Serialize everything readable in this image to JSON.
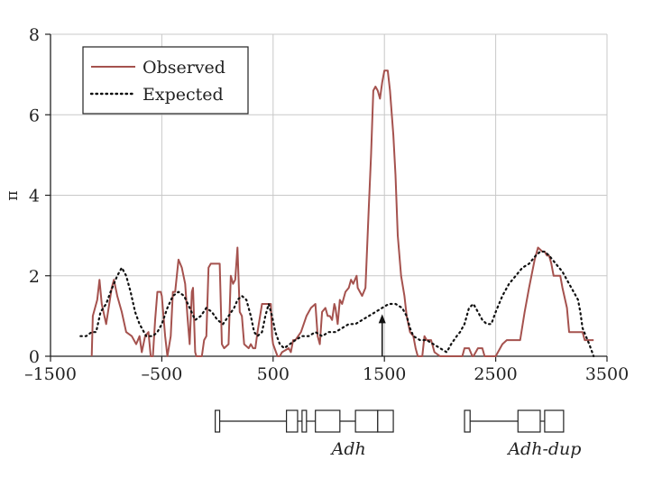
{
  "chart_data": {
    "type": "line",
    "title": "",
    "xlabel": "",
    "ylabel": "π",
    "xlim": [
      -1500,
      3500
    ],
    "ylim": [
      0,
      8
    ],
    "x_ticks": [
      -1500,
      -500,
      500,
      1500,
      2500,
      3500
    ],
    "x_tick_labels": [
      "–1500",
      "–500",
      "500",
      "1500",
      "2500",
      "3500"
    ],
    "y_ticks": [
      0,
      2,
      4,
      6,
      8
    ],
    "y_tick_labels": [
      "0",
      "2",
      "4",
      "6",
      "8"
    ],
    "grid": true,
    "legend_position": "top-left",
    "series": [
      {
        "name": "Observed",
        "style": "solid",
        "color": "#a5524e",
        "points": [
          [
            -1130,
            0
          ],
          [
            -1120,
            1.0
          ],
          [
            -1080,
            1.4
          ],
          [
            -1060,
            1.9
          ],
          [
            -1040,
            1.3
          ],
          [
            -1000,
            0.8
          ],
          [
            -950,
            1.7
          ],
          [
            -930,
            1.9
          ],
          [
            -900,
            1.5
          ],
          [
            -860,
            1.1
          ],
          [
            -820,
            0.6
          ],
          [
            -770,
            0.5
          ],
          [
            -730,
            0.3
          ],
          [
            -700,
            0.5
          ],
          [
            -680,
            0.1
          ],
          [
            -650,
            0.5
          ],
          [
            -620,
            0.6
          ],
          [
            -600,
            0.0
          ],
          [
            -580,
            0.0
          ],
          [
            -560,
            0.9
          ],
          [
            -540,
            1.6
          ],
          [
            -510,
            1.6
          ],
          [
            -500,
            1.5
          ],
          [
            -470,
            0.5
          ],
          [
            -450,
            0.0
          ],
          [
            -420,
            0.5
          ],
          [
            -400,
            1.6
          ],
          [
            -380,
            1.6
          ],
          [
            -350,
            2.4
          ],
          [
            -320,
            2.2
          ],
          [
            -290,
            1.8
          ],
          [
            -270,
            1.0
          ],
          [
            -250,
            0.3
          ],
          [
            -230,
            1.6
          ],
          [
            -220,
            1.7
          ],
          [
            -200,
            0.1
          ],
          [
            -190,
            0.0
          ],
          [
            -140,
            0.0
          ],
          [
            -120,
            0.4
          ],
          [
            -100,
            0.5
          ],
          [
            -80,
            2.2
          ],
          [
            -60,
            2.3
          ],
          [
            20,
            2.3
          ],
          [
            40,
            0.3
          ],
          [
            60,
            0.2
          ],
          [
            100,
            0.3
          ],
          [
            120,
            2.0
          ],
          [
            140,
            1.8
          ],
          [
            160,
            1.9
          ],
          [
            180,
            2.7
          ],
          [
            200,
            1.1
          ],
          [
            220,
            1.0
          ],
          [
            240,
            0.3
          ],
          [
            280,
            0.2
          ],
          [
            300,
            0.3
          ],
          [
            320,
            0.2
          ],
          [
            340,
            0.2
          ],
          [
            360,
            0.6
          ],
          [
            400,
            1.3
          ],
          [
            450,
            1.3
          ],
          [
            480,
            1.3
          ],
          [
            490,
            0.5
          ],
          [
            500,
            0.3
          ],
          [
            540,
            0.0
          ],
          [
            560,
            0.0
          ],
          [
            580,
            0.1
          ],
          [
            640,
            0.2
          ],
          [
            660,
            0.1
          ],
          [
            680,
            0.4
          ],
          [
            700,
            0.4
          ],
          [
            750,
            0.6
          ],
          [
            800,
            1.0
          ],
          [
            840,
            1.2
          ],
          [
            880,
            1.3
          ],
          [
            900,
            0.5
          ],
          [
            920,
            0.3
          ],
          [
            940,
            1.1
          ],
          [
            970,
            1.2
          ],
          [
            990,
            1.0
          ],
          [
            1010,
            1.0
          ],
          [
            1030,
            0.9
          ],
          [
            1050,
            1.3
          ],
          [
            1060,
            1.2
          ],
          [
            1080,
            0.8
          ],
          [
            1100,
            1.4
          ],
          [
            1120,
            1.3
          ],
          [
            1150,
            1.6
          ],
          [
            1180,
            1.7
          ],
          [
            1200,
            1.9
          ],
          [
            1220,
            1.8
          ],
          [
            1250,
            2.0
          ],
          [
            1260,
            1.7
          ],
          [
            1300,
            1.5
          ],
          [
            1330,
            1.7
          ],
          [
            1360,
            3.7
          ],
          [
            1380,
            5.0
          ],
          [
            1400,
            6.6
          ],
          [
            1420,
            6.7
          ],
          [
            1440,
            6.6
          ],
          [
            1460,
            6.4
          ],
          [
            1480,
            6.8
          ],
          [
            1500,
            7.1
          ],
          [
            1530,
            7.1
          ],
          [
            1550,
            6.6
          ],
          [
            1580,
            5.5
          ],
          [
            1600,
            4.5
          ],
          [
            1620,
            3.0
          ],
          [
            1650,
            2.0
          ],
          [
            1680,
            1.5
          ],
          [
            1700,
            1.0
          ],
          [
            1730,
            0.6
          ],
          [
            1760,
            0.5
          ],
          [
            1780,
            0.2
          ],
          [
            1800,
            0.0
          ],
          [
            1840,
            0.0
          ],
          [
            1860,
            0.5
          ],
          [
            1880,
            0.4
          ],
          [
            1920,
            0.4
          ],
          [
            1950,
            0.1
          ],
          [
            2000,
            0.0
          ],
          [
            2200,
            0.0
          ],
          [
            2220,
            0.2
          ],
          [
            2260,
            0.2
          ],
          [
            2290,
            0.0
          ],
          [
            2300,
            0.0
          ],
          [
            2340,
            0.2
          ],
          [
            2380,
            0.2
          ],
          [
            2400,
            0.0
          ],
          [
            2500,
            0.0
          ],
          [
            2560,
            0.3
          ],
          [
            2600,
            0.4
          ],
          [
            2700,
            0.4
          ],
          [
            2720,
            0.4
          ],
          [
            2760,
            1.1
          ],
          [
            2800,
            1.7
          ],
          [
            2850,
            2.4
          ],
          [
            2880,
            2.7
          ],
          [
            2920,
            2.6
          ],
          [
            2940,
            2.6
          ],
          [
            2960,
            2.5
          ],
          [
            2980,
            2.5
          ],
          [
            3000,
            2.3
          ],
          [
            3020,
            2.0
          ],
          [
            3060,
            2.0
          ],
          [
            3080,
            2.0
          ],
          [
            3100,
            1.7
          ],
          [
            3140,
            1.2
          ],
          [
            3160,
            0.6
          ],
          [
            3200,
            0.6
          ],
          [
            3240,
            0.6
          ],
          [
            3280,
            0.6
          ],
          [
            3300,
            0.4
          ],
          [
            3350,
            0.4
          ],
          [
            3380,
            0.4
          ]
        ]
      },
      {
        "name": "Expected",
        "style": "dotted",
        "color": "#111111",
        "points": [
          [
            -1230,
            0.5
          ],
          [
            -1180,
            0.5
          ],
          [
            -1130,
            0.6
          ],
          [
            -1090,
            0.6
          ],
          [
            -1050,
            1.1
          ],
          [
            -1000,
            1.3
          ],
          [
            -960,
            1.6
          ],
          [
            -900,
            2.0
          ],
          [
            -860,
            2.2
          ],
          [
            -820,
            2.0
          ],
          [
            -780,
            1.6
          ],
          [
            -740,
            1.1
          ],
          [
            -700,
            0.8
          ],
          [
            -640,
            0.5
          ],
          [
            -580,
            0.5
          ],
          [
            -540,
            0.6
          ],
          [
            -500,
            0.8
          ],
          [
            -450,
            1.2
          ],
          [
            -400,
            1.5
          ],
          [
            -350,
            1.6
          ],
          [
            -300,
            1.5
          ],
          [
            -250,
            1.2
          ],
          [
            -200,
            0.9
          ],
          [
            -150,
            1.0
          ],
          [
            -100,
            1.2
          ],
          [
            -50,
            1.1
          ],
          [
            0,
            0.9
          ],
          [
            50,
            0.8
          ],
          [
            100,
            1.0
          ],
          [
            150,
            1.2
          ],
          [
            180,
            1.4
          ],
          [
            220,
            1.5
          ],
          [
            260,
            1.4
          ],
          [
            300,
            1.0
          ],
          [
            330,
            0.6
          ],
          [
            360,
            0.5
          ],
          [
            400,
            0.6
          ],
          [
            430,
            1.0
          ],
          [
            460,
            1.3
          ],
          [
            490,
            1.0
          ],
          [
            520,
            0.6
          ],
          [
            560,
            0.3
          ],
          [
            600,
            0.2
          ],
          [
            650,
            0.3
          ],
          [
            700,
            0.4
          ],
          [
            760,
            0.5
          ],
          [
            820,
            0.5
          ],
          [
            880,
            0.6
          ],
          [
            940,
            0.5
          ],
          [
            1000,
            0.6
          ],
          [
            1060,
            0.6
          ],
          [
            1120,
            0.7
          ],
          [
            1180,
            0.8
          ],
          [
            1240,
            0.8
          ],
          [
            1300,
            0.9
          ],
          [
            1360,
            1.0
          ],
          [
            1420,
            1.1
          ],
          [
            1480,
            1.2
          ],
          [
            1540,
            1.3
          ],
          [
            1600,
            1.3
          ],
          [
            1660,
            1.2
          ],
          [
            1700,
            1.0
          ],
          [
            1730,
            0.7
          ],
          [
            1760,
            0.5
          ],
          [
            1820,
            0.4
          ],
          [
            1880,
            0.4
          ],
          [
            1940,
            0.3
          ],
          [
            2000,
            0.2
          ],
          [
            2060,
            0.1
          ],
          [
            2100,
            0.3
          ],
          [
            2150,
            0.5
          ],
          [
            2180,
            0.6
          ],
          [
            2220,
            0.8
          ],
          [
            2260,
            1.2
          ],
          [
            2300,
            1.3
          ],
          [
            2340,
            1.1
          ],
          [
            2380,
            0.9
          ],
          [
            2420,
            0.8
          ],
          [
            2460,
            0.8
          ],
          [
            2500,
            1.1
          ],
          [
            2560,
            1.5
          ],
          [
            2620,
            1.8
          ],
          [
            2680,
            2.0
          ],
          [
            2740,
            2.2
          ],
          [
            2800,
            2.3
          ],
          [
            2860,
            2.5
          ],
          [
            2900,
            2.6
          ],
          [
            2940,
            2.6
          ],
          [
            2980,
            2.5
          ],
          [
            3040,
            2.3
          ],
          [
            3100,
            2.1
          ],
          [
            3160,
            1.8
          ],
          [
            3200,
            1.6
          ],
          [
            3240,
            1.4
          ],
          [
            3260,
            1.1
          ],
          [
            3280,
            0.7
          ],
          [
            3310,
            0.5
          ],
          [
            3340,
            0.3
          ],
          [
            3380,
            0.0
          ]
        ]
      }
    ],
    "annotations": [
      {
        "type": "arrow",
        "x": 1480,
        "y_from": 0,
        "y_to": 1.0
      }
    ]
  },
  "gene_map": {
    "genes": [
      {
        "label": "Adh",
        "label_x": 1180
      },
      {
        "label": "Adh-dup",
        "label_x": 2940
      }
    ],
    "exons": [
      [
        -20,
        20
      ],
      [
        620,
        720
      ],
      [
        760,
        800
      ],
      [
        880,
        1100
      ],
      [
        1240,
        1440
      ],
      [
        1440,
        1580
      ],
      [
        2220,
        2270
      ],
      [
        2700,
        2900
      ],
      [
        2940,
        3110
      ]
    ],
    "introns": [
      [
        20,
        620
      ],
      [
        720,
        760
      ],
      [
        800,
        880
      ],
      [
        1100,
        1240
      ],
      [
        2270,
        2700
      ],
      [
        2900,
        2940
      ]
    ]
  }
}
